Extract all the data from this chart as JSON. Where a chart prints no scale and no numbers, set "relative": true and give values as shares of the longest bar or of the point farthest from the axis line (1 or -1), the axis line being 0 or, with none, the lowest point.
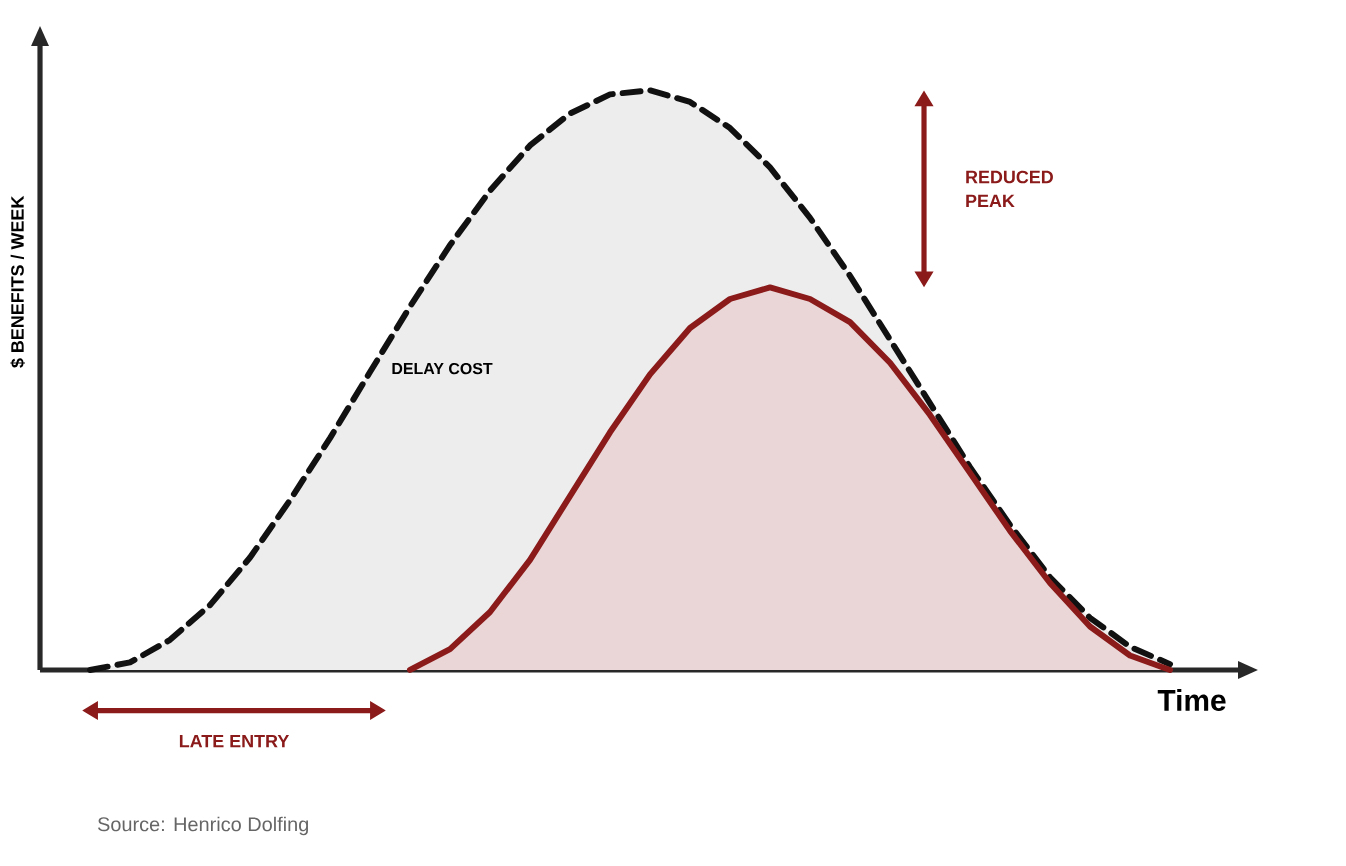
{
  "chart_data": {
    "type": "area",
    "relative": true,
    "xlabel": "Time",
    "ylabel": "$ BENEFITS / WEEK",
    "categories": [
      null,
      null,
      null,
      null,
      null,
      null,
      null,
      null,
      null,
      null,
      null,
      null,
      null,
      null,
      null,
      null,
      null,
      null,
      null,
      null,
      null,
      null,
      null,
      null,
      null,
      null,
      null,
      null
    ],
    "series": [
      {
        "color": "#111111",
        "line_style": "dashed",
        "values": [
          0,
          0.013,
          0.052,
          0.112,
          0.194,
          0.293,
          0.4,
          0.514,
          0.627,
          0.733,
          0.827,
          0.905,
          0.96,
          0.993,
          1.0,
          0.98,
          0.935,
          0.867,
          0.78,
          0.68,
          0.57,
          0.46,
          0.35,
          0.25,
          0.16,
          0.09,
          0.04,
          0.01
        ]
      },
      {
        "color": "#8b1a1a",
        "line_style": "solid",
        "values": [
          null,
          null,
          null,
          null,
          null,
          null,
          null,
          null,
          0,
          0.036,
          0.1,
          0.19,
          0.3,
          0.41,
          0.51,
          0.59,
          0.64,
          0.66,
          0.64,
          0.6,
          0.53,
          0.44,
          0.34,
          0.24,
          0.15,
          0.075,
          0.025,
          0
        ]
      }
    ],
    "annotations": [
      "DELAY COST",
      "REDUCED PEAK",
      "LATE ENTRY",
      "Source: Henrico Dolfing"
    ]
  }
}
